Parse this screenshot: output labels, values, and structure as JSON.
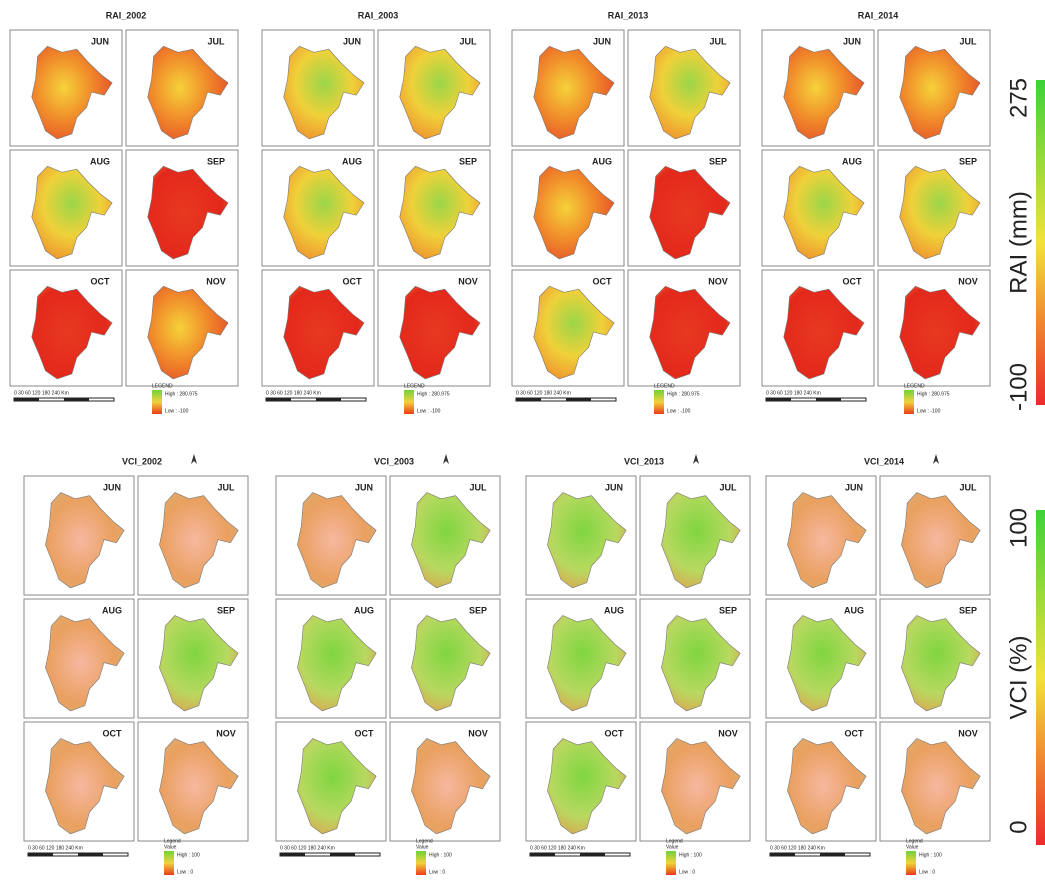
{
  "rai": {
    "groups": [
      {
        "title": "RAI_2002"
      },
      {
        "title": "RAI_2003"
      },
      {
        "title": "RAI_2013"
      },
      {
        "title": "RAI_2014"
      }
    ],
    "months": [
      "JUN",
      "JUL",
      "AUG",
      "SEP",
      "OCT",
      "NOV"
    ],
    "legend": {
      "heading": "LEGEND",
      "high": "High : 280.975",
      "low": "Low : -100"
    },
    "scale": "0 30 60 120 180 240 Km",
    "colorbar": {
      "max": "275",
      "label": "RAI (mm)",
      "min": "-100"
    }
  },
  "vci": {
    "groups": [
      {
        "title": "VCI_2002"
      },
      {
        "title": "VCI_2003"
      },
      {
        "title": "VCI_2013"
      },
      {
        "title": "VCI_2014"
      }
    ],
    "months": [
      "JUN",
      "JUL",
      "AUG",
      "SEP",
      "OCT",
      "NOV"
    ],
    "legend": {
      "heading": "Legend",
      "sub": "Value",
      "high": "High : 100",
      "low": "Low : 0"
    },
    "scale": "0 30 60 120 180 240 Km",
    "colorbar": {
      "max": "100",
      "label": "VCI (%)",
      "min": "0"
    }
  }
}
